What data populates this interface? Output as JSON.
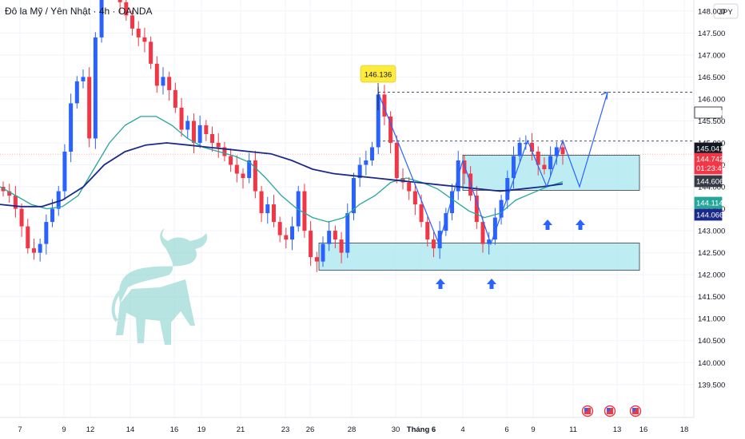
{
  "header": {
    "symbol_title": "Đô la Mỹ / Yên Nhật · 4h · OANDA",
    "currency": "JPY"
  },
  "colors": {
    "up": "#2962ff",
    "down": "#f23645",
    "ma_fast": "#26a69a",
    "ma_slow": "#1b2a8a",
    "zone_fill": "#b2ebf2",
    "zone_stroke": "#131722",
    "projection": "#2962ff",
    "callout": "#ffeb3b",
    "current_price_bg": "#f23645",
    "bull": "#9fdad8"
  },
  "chart_data": {
    "type": "candlestick",
    "currency": "JPY",
    "ylim": [
      139.3,
      148.8
    ],
    "y_ticks": [
      "148.000",
      "147.500",
      "147.000",
      "146.500",
      "146.000",
      "145.500",
      "145.000",
      "144.500",
      "144.000",
      "143.500",
      "143.000",
      "142.500",
      "142.000",
      "141.500",
      "141.000",
      "140.500",
      "140.000",
      "139.500"
    ],
    "x_ticks": [
      "7",
      "9",
      "12",
      "14",
      "16",
      "19",
      "21",
      "23",
      "26",
      "28",
      "30",
      "Tháng 6",
      "4",
      "6",
      "9",
      "11",
      "13",
      "16",
      "18"
    ],
    "callout_value": "146.136",
    "price_tags": [
      {
        "value": "146.151",
        "style": "white"
      },
      {
        "value": "145.041",
        "style": "black"
      },
      {
        "value": "144.742",
        "style": "red",
        "sub": "01:23:49"
      },
      {
        "value": "144.606",
        "style": "dark"
      },
      {
        "value": "144.114",
        "style": "teal"
      },
      {
        "value": "144.066",
        "style": "navy"
      }
    ],
    "dashed_levels": [
      146.15,
      145.04
    ],
    "demand_zones": [
      {
        "price_low": 142.1,
        "price_high": 142.72,
        "from_x": "26",
        "to_x": "13"
      },
      {
        "price_low": 143.92,
        "price_high": 144.72,
        "from_x": "4",
        "to_x": "13"
      }
    ],
    "series": [
      {
        "name": "Price (approx close)",
        "values": [
          143.9,
          143.8,
          143.5,
          143.1,
          142.6,
          142.5,
          142.7,
          143.2,
          143.5,
          143.9,
          144.8,
          145.9,
          146.4,
          146.5,
          145.1,
          147.4,
          148.5,
          148.8,
          148.6,
          148.2,
          147.9,
          147.6,
          147.4,
          147.3,
          146.8,
          146.3,
          146.5,
          146.2,
          145.8,
          145.3,
          145.5,
          145.0,
          145.4,
          145.2,
          145.0,
          144.9,
          144.7,
          144.5,
          144.3,
          144.2,
          144.6,
          143.9,
          143.4,
          143.6,
          143.2,
          142.9,
          142.8,
          143.1,
          143.9,
          143.0,
          142.4,
          142.3,
          142.7,
          143.0,
          142.8,
          142.5,
          143.4,
          144.2,
          144.5,
          144.6,
          144.9,
          146.1,
          145.6,
          145.0,
          144.2,
          144.1,
          143.9,
          143.6,
          143.2,
          142.8,
          142.6,
          143.0,
          143.4,
          143.9,
          144.6,
          144.3,
          143.8,
          143.2,
          142.7,
          142.8,
          143.3,
          143.7,
          144.2,
          144.7,
          145.0,
          145.0,
          144.8,
          144.5,
          144.4,
          144.7,
          144.9,
          144.742
        ]
      },
      {
        "name": "MA fast (teal)",
        "values": [
          144.0,
          143.8,
          143.6,
          143.5,
          143.55,
          143.8,
          144.4,
          145.0,
          145.4,
          145.6,
          145.6,
          145.4,
          145.1,
          144.9,
          144.8,
          144.7,
          144.55,
          144.2,
          143.8,
          143.5,
          143.3,
          143.2,
          143.3,
          143.6,
          143.8,
          144.1,
          144.2,
          144.1,
          143.95,
          143.7,
          143.45,
          143.3,
          143.4,
          143.7,
          143.85,
          144.0,
          144.114
        ]
      },
      {
        "name": "MA slow (navy)",
        "values": [
          143.6,
          143.55,
          143.55,
          143.7,
          144.0,
          144.5,
          144.8,
          144.95,
          145.0,
          144.95,
          144.9,
          144.85,
          144.8,
          144.75,
          144.6,
          144.4,
          144.3,
          144.25,
          144.2,
          144.15,
          144.1,
          144.05,
          144.0,
          143.95,
          143.9,
          143.95,
          144.0,
          144.066
        ]
      },
      {
        "name": "Projection path",
        "values": [
          146.15,
          142.7,
          144.6,
          142.7,
          145.05,
          144.0,
          145.05,
          144.0,
          146.15
        ]
      }
    ],
    "signal_arrows": 4,
    "event_flags": 3
  }
}
